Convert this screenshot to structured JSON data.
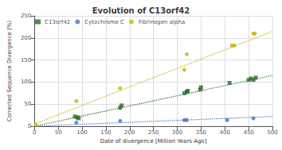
{
  "chart_data": {
    "type": "scatter",
    "title": "Evolution of C13orf42",
    "xlabel": "Date of divergence [Million Years Ago]",
    "ylabel": "Corrected Sequence Divergence (%)",
    "xlim": [
      0,
      500
    ],
    "ylim": [
      0,
      250
    ],
    "xticks": [
      0,
      50,
      100,
      150,
      200,
      250,
      300,
      350,
      400,
      450,
      500
    ],
    "yticks": [
      0,
      50,
      100,
      150,
      200,
      250
    ],
    "grid": true,
    "legend": "upper left",
    "series": [
      {
        "type": "line",
        "line_style": "dotted",
        "color": "#2d6a2d",
        "x": [
          0,
          500
        ],
        "values": [
          0,
          115
        ]
      },
      {
        "type": "line",
        "line_style": "dotted",
        "color": "#4472c4",
        "x": [
          0,
          500
        ],
        "values": [
          0,
          22
        ]
      },
      {
        "type": "line",
        "line_style": "dotted",
        "color": "#c8b400",
        "x": [
          0,
          500
        ],
        "values": [
          5,
          215
        ]
      },
      {
        "name": "C13orf42",
        "type": "scatter",
        "marker": "square",
        "color": "#2d6a2d",
        "x": [
          85,
          90,
          93,
          180,
          183,
          315,
          320,
          322,
          348,
          350,
          410,
          450,
          455,
          460,
          465
        ],
        "values": [
          22,
          20,
          18,
          42,
          47,
          75,
          78,
          80,
          83,
          88,
          98,
          105,
          108,
          105,
          110
        ]
      },
      {
        "name": "Cytochrome C",
        "type": "scatter",
        "marker": "circle",
        "color": "#4472c4",
        "x": [
          88,
          180,
          315,
          320,
          405,
          460
        ],
        "values": [
          8,
          12,
          14,
          14,
          14,
          18
        ]
      },
      {
        "name": "Fibrinogen alpha",
        "type": "scatter",
        "marker": "circle",
        "color": "#c8b400",
        "x": [
          3,
          88,
          180,
          315,
          320,
          415,
          420,
          460,
          463
        ],
        "values": [
          3,
          57,
          86,
          128,
          163,
          183,
          183,
          210,
          210
        ]
      }
    ]
  }
}
